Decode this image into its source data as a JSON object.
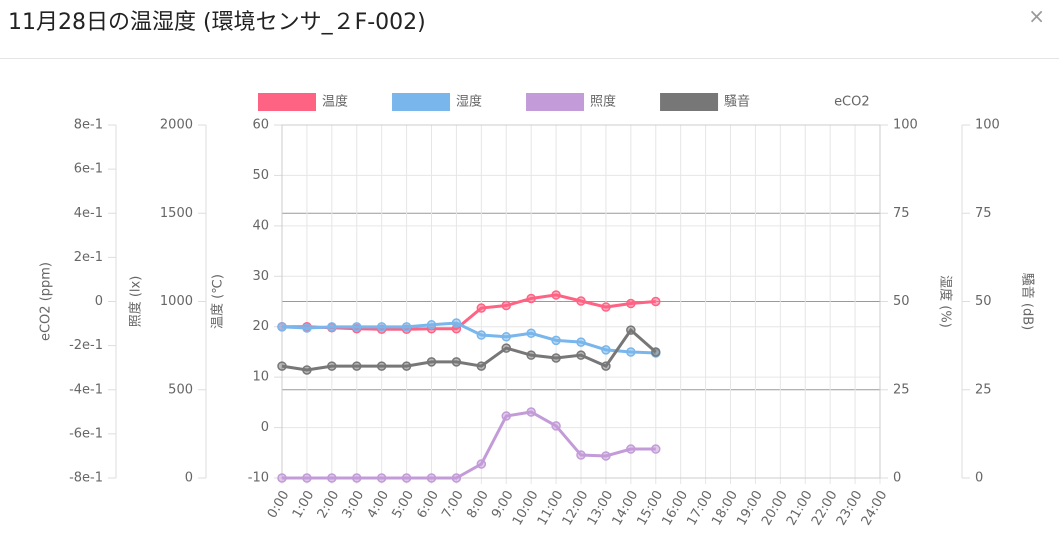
{
  "header": {
    "title": "11月28日の温湿度 (環境センサ_２F-002)",
    "close": "×"
  },
  "chart_data": {
    "type": "line",
    "categories": [
      "0:00",
      "1:00",
      "2:00",
      "3:00",
      "4:00",
      "5:00",
      "6:00",
      "7:00",
      "8:00",
      "9:00",
      "10:00",
      "11:00",
      "12:00",
      "13:00",
      "14:00",
      "15:00",
      "16:00",
      "17:00",
      "18:00",
      "19:00",
      "20:00",
      "21:00",
      "22:00",
      "23:00",
      "24:00"
    ],
    "axes": [
      {
        "label": "eCO2 (ppm)",
        "side": "left",
        "lim": [
          -0.8,
          0.8
        ],
        "ticks": [
          {
            "value": 0.8,
            "label": "8e-1"
          },
          {
            "value": 0.6,
            "label": "6e-1"
          },
          {
            "value": 0.4,
            "label": "4e-1"
          },
          {
            "value": 0.2,
            "label": "2e-1"
          },
          0,
          {
            "value": -0.2,
            "label": "-2e-1"
          },
          {
            "value": -0.4,
            "label": "-4e-1"
          },
          {
            "value": -0.6,
            "label": "-6e-1"
          },
          {
            "value": -0.8,
            "label": "-8e-1"
          }
        ]
      },
      {
        "label": "照度 (lx)",
        "side": "left",
        "lim": [
          0,
          2000
        ],
        "ticks": [
          0,
          500,
          1000,
          1500,
          2000
        ]
      },
      {
        "label": "温度 (℃)",
        "side": "left",
        "lim": [
          -10,
          60
        ],
        "ticks": [
          -10,
          0,
          10,
          20,
          30,
          40,
          50,
          60
        ],
        "grid": true
      },
      {
        "label": "湿度 (%)",
        "side": "right",
        "lim": [
          0,
          100
        ],
        "ticks": [
          0,
          25,
          50,
          75,
          100
        ],
        "grid": true
      },
      {
        "label": "騒音 (dB)",
        "side": "right",
        "lim": [
          0,
          100
        ],
        "ticks": [
          0,
          25,
          50,
          75,
          100
        ]
      }
    ],
    "series": [
      {
        "name": "温度",
        "color": "#ff6384",
        "axis": 2,
        "values": [
          20,
          20,
          19.8,
          19.6,
          19.5,
          19.5,
          19.6,
          19.6,
          23.7,
          24.2,
          25.6,
          26.3,
          25.1,
          23.9,
          24.6,
          25.0,
          null,
          null,
          null,
          null,
          null,
          null,
          null,
          null,
          null
        ]
      },
      {
        "name": "湿度",
        "color": "#78b6ec",
        "axis": 3,
        "values": [
          42.8,
          42.5,
          42.8,
          42.8,
          42.8,
          42.8,
          43.4,
          43.9,
          40.5,
          40,
          41,
          39,
          38.5,
          36.3,
          35.7,
          35.4,
          null,
          null,
          null,
          null,
          null,
          null,
          null,
          null,
          null
        ]
      },
      {
        "name": "照度",
        "color": "#c39bd8",
        "axis": 1,
        "values": [
          0,
          0,
          0,
          0,
          0,
          0,
          0,
          0,
          79,
          351,
          374,
          295,
          130,
          125,
          164,
          164,
          null,
          null,
          null,
          null,
          null,
          null,
          null,
          null,
          null
        ]
      },
      {
        "name": "騒音",
        "color": "#777777",
        "axis": 4,
        "values": [
          31.7,
          30.6,
          31.7,
          31.7,
          31.7,
          31.7,
          32.9,
          32.9,
          31.7,
          36.8,
          34.8,
          34,
          34.8,
          31.7,
          41.9,
          35.7,
          null,
          null,
          null,
          null,
          null,
          null,
          null,
          null,
          null
        ]
      },
      {
        "name": "eCO2",
        "axis": 0,
        "values": [
          null,
          null,
          null,
          null,
          null,
          null,
          null,
          null,
          null,
          null,
          null,
          null,
          null,
          null,
          null,
          null,
          null,
          null,
          null,
          null,
          null,
          null,
          null,
          null,
          null
        ]
      }
    ]
  }
}
